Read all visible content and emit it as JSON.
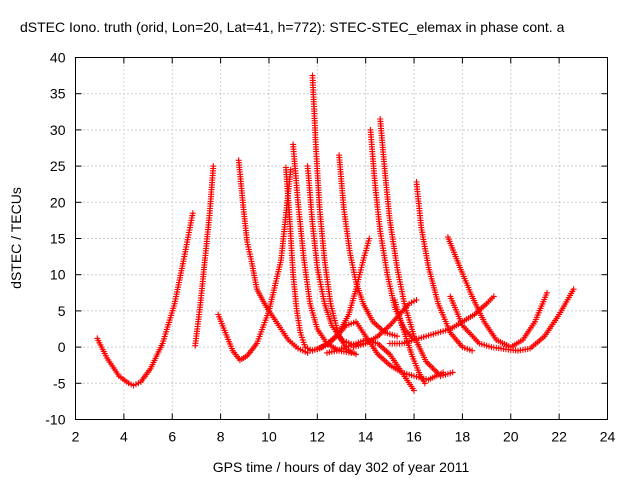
{
  "chart_data": {
    "type": "scatter",
    "title": "dSTEC Iono. truth (orid, Lon=20, Lat=41, h=772): STEC-STEC_elemax in phase cont. a",
    "xlabel": "GPS time / hours of day 302 of year 2011",
    "ylabel": "dSTEC  / TECUs",
    "xlim": [
      2,
      24
    ],
    "ylim": [
      -10,
      40
    ],
    "xticks": [
      2,
      4,
      6,
      8,
      10,
      12,
      14,
      16,
      18,
      20,
      22,
      24
    ],
    "yticks": [
      -10,
      -5,
      0,
      5,
      10,
      15,
      20,
      25,
      30,
      35,
      40
    ],
    "grid": true,
    "marker": "plus",
    "color": "#ff0000",
    "series": [
      {
        "x": [
          2.9,
          3.3,
          3.8,
          4.2,
          4.4,
          4.7,
          5.1,
          5.6,
          6.1,
          6.5,
          6.85
        ],
        "y": [
          1.2,
          -1.5,
          -4.0,
          -5.0,
          -5.3,
          -4.8,
          -3.0,
          0.5,
          6.0,
          12.5,
          18.5
        ]
      },
      {
        "x": [
          6.95,
          7.15,
          7.35,
          7.55,
          7.7
        ],
        "y": [
          0.2,
          5.5,
          12.0,
          18.5,
          25.0
        ]
      },
      {
        "x": [
          8.75,
          8.95,
          9.1,
          9.3,
          9.5,
          9.9,
          10.4,
          10.8,
          11.2,
          11.6
        ],
        "y": [
          25.8,
          19.0,
          14.5,
          11.5,
          8.0,
          5.5,
          3.0,
          1.0,
          -0.2,
          -0.8
        ]
      },
      {
        "x": [
          7.9,
          8.2,
          8.5,
          8.8,
          9.1,
          9.5,
          10.0,
          10.5,
          10.9
        ],
        "y": [
          4.5,
          2.0,
          -0.5,
          -1.8,
          -1.2,
          0.5,
          5.0,
          12.0,
          24.5
        ]
      },
      {
        "x": [
          10.7,
          10.85,
          11.0,
          11.15,
          11.3,
          11.5,
          11.8,
          12.2
        ],
        "y": [
          24.8,
          18.0,
          10.0,
          5.0,
          2.0,
          0.0,
          -0.5,
          0.0
        ]
      },
      {
        "x": [
          11.0,
          11.2,
          11.45,
          11.7,
          12.0,
          12.4,
          12.9,
          13.4
        ],
        "y": [
          28.0,
          20.0,
          12.0,
          6.0,
          2.5,
          0.5,
          -0.5,
          -0.8
        ]
      },
      {
        "x": [
          11.6,
          11.8,
          12.0,
          12.3,
          12.6,
          13.0,
          13.5,
          14.0
        ],
        "y": [
          25.0,
          17.0,
          11.0,
          6.0,
          3.0,
          1.0,
          0.3,
          0.5
        ]
      },
      {
        "x": [
          11.8,
          11.95,
          12.1,
          12.3,
          12.55,
          12.85,
          13.2,
          13.6
        ],
        "y": [
          37.5,
          27.0,
          19.0,
          12.0,
          6.0,
          2.0,
          -0.3,
          -1.0
        ]
      },
      {
        "x": [
          12.9,
          13.1,
          13.35,
          13.6,
          13.9,
          14.3,
          14.8,
          15.3
        ],
        "y": [
          26.5,
          19.0,
          13.0,
          9.0,
          6.0,
          3.5,
          2.0,
          1.5
        ]
      },
      {
        "x": [
          14.2,
          14.4,
          14.6,
          14.9,
          15.2,
          15.6,
          16.0
        ],
        "y": [
          30.0,
          22.0,
          16.0,
          10.0,
          5.5,
          2.5,
          1.0
        ]
      },
      {
        "x": [
          14.6,
          14.8,
          15.0,
          15.3,
          15.6,
          16.0,
          16.5,
          17.1,
          17.6
        ],
        "y": [
          31.5,
          24.0,
          17.5,
          11.0,
          6.0,
          1.5,
          -2.0,
          -4.0,
          -3.5
        ]
      },
      {
        "x": [
          15.2,
          15.5,
          15.9,
          16.2,
          16.45
        ],
        "y": [
          6.5,
          3.0,
          -1.0,
          -3.5,
          -5.0
        ]
      },
      {
        "x": [
          16.1,
          16.3,
          16.6,
          17.0,
          17.5,
          18.0,
          18.4
        ],
        "y": [
          22.8,
          16.5,
          11.0,
          6.0,
          2.0,
          0.0,
          -0.5
        ]
      },
      {
        "x": [
          17.4,
          17.9,
          18.4,
          18.9,
          19.4,
          20.0,
          20.5,
          21.0,
          21.5
        ],
        "y": [
          15.2,
          11.0,
          7.0,
          3.5,
          1.0,
          0.0,
          1.0,
          3.5,
          7.5
        ]
      },
      {
        "x": [
          17.5,
          18.0,
          18.7,
          19.2,
          19.8,
          20.3,
          20.8,
          21.4,
          22.0,
          22.6
        ],
        "y": [
          7.0,
          3.0,
          0.5,
          0.0,
          -0.3,
          -0.5,
          -0.2,
          1.5,
          4.5,
          8.0
        ]
      },
      {
        "x": [
          11.7,
          12.1,
          12.5,
          12.9,
          13.3,
          13.6,
          13.9,
          14.15
        ],
        "y": [
          -0.5,
          -0.2,
          0.5,
          2.0,
          4.5,
          8.0,
          12.0,
          15.0
        ]
      },
      {
        "x": [
          12.4,
          12.8,
          13.2,
          13.6,
          14.0,
          14.5,
          15.0,
          15.5,
          16.0
        ],
        "y": [
          -0.8,
          -0.5,
          0.0,
          0.5,
          1.0,
          0.5,
          -1.0,
          -3.5,
          -6.0
        ]
      },
      {
        "x": [
          12.0,
          12.4,
          12.8,
          13.2,
          13.6,
          14.0,
          14.5,
          15.0,
          15.5,
          16.0,
          16.6,
          17.2
        ],
        "y": [
          -0.3,
          0.5,
          1.5,
          3.0,
          3.5,
          1.5,
          -1.0,
          -2.5,
          -3.5,
          -4.0,
          -4.5,
          -3.5
        ]
      },
      {
        "x": [
          13.5,
          14.0,
          14.5,
          15.0,
          15.4,
          15.8,
          16.1
        ],
        "y": [
          0.0,
          0.5,
          1.5,
          3.0,
          4.5,
          6.0,
          6.5
        ]
      },
      {
        "x": [
          15.0,
          15.5,
          16.0,
          16.5,
          17.0,
          17.5,
          18.0,
          18.5,
          19.0,
          19.3
        ],
        "y": [
          0.5,
          0.5,
          1.0,
          1.5,
          2.0,
          2.5,
          3.5,
          4.5,
          6.0,
          7.0
        ]
      }
    ]
  }
}
